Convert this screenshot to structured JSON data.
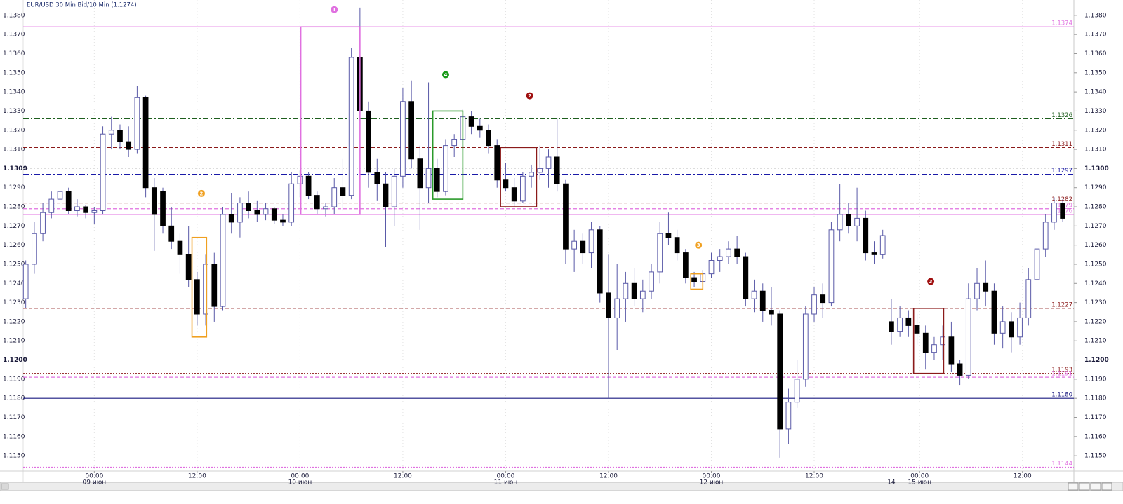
{
  "chart_data": {
    "type": "candlestick",
    "title": "EUR/USD 30 Min Bid/10 Min (1.1274)",
    "ylim": [
      1.1142,
      1.1388
    ],
    "xlim": [
      -0.3,
      122.3
    ],
    "grid": true,
    "up_color": "#ffffff",
    "down_color": "#000000",
    "wick_color": "#5a5aa8",
    "yticks": [
      {
        "value": 1.115,
        "label": "1.1150"
      },
      {
        "value": 1.116,
        "label": "1.1160"
      },
      {
        "value": 1.117,
        "label": "1.1170"
      },
      {
        "value": 1.118,
        "label": "1.1180"
      },
      {
        "value": 1.119,
        "label": "1.1190"
      },
      {
        "value": 1.12,
        "label": "1.1200",
        "bold": true
      },
      {
        "value": 1.121,
        "label": "1.1210"
      },
      {
        "value": 1.122,
        "label": "1.1220"
      },
      {
        "value": 1.123,
        "label": "1.1230"
      },
      {
        "value": 1.124,
        "label": "1.1240"
      },
      {
        "value": 1.125,
        "label": "1.1250"
      },
      {
        "value": 1.126,
        "label": "1.1260"
      },
      {
        "value": 1.127,
        "label": "1.1270"
      },
      {
        "value": 1.128,
        "label": "1.1280"
      },
      {
        "value": 1.129,
        "label": "1.1290"
      },
      {
        "value": 1.13,
        "label": "1.1300",
        "bold": true
      },
      {
        "value": 1.131,
        "label": "1.1310"
      },
      {
        "value": 1.132,
        "label": "1.1320"
      },
      {
        "value": 1.133,
        "label": "1.1330"
      },
      {
        "value": 1.134,
        "label": "1.1340"
      },
      {
        "value": 1.135,
        "label": "1.1350"
      },
      {
        "value": 1.136,
        "label": "1.1360"
      },
      {
        "value": 1.137,
        "label": "1.1370"
      },
      {
        "value": 1.138,
        "label": "1.1380"
      }
    ],
    "xticks": [
      {
        "value": 8,
        "label": "00:00"
      },
      {
        "value": 20,
        "label": "12:00"
      },
      {
        "value": 32,
        "label": "00:00"
      },
      {
        "value": 44,
        "label": "12:00"
      },
      {
        "value": 56,
        "label": "00:00"
      },
      {
        "value": 68,
        "label": "12:00"
      },
      {
        "value": 80,
        "label": "00:00"
      },
      {
        "value": 92,
        "label": "12:00"
      },
      {
        "value": 104.3,
        "label": "00:00"
      },
      {
        "value": 116.3,
        "label": "12:00"
      }
    ],
    "xdates": [
      {
        "value": 8,
        "label": "09 июн"
      },
      {
        "value": 32,
        "label": "10 июн"
      },
      {
        "value": 56,
        "label": "11 июн"
      },
      {
        "value": 80,
        "label": "12 июн"
      },
      {
        "value": 101,
        "label": "14"
      },
      {
        "value": 104.3,
        "label": "15 июн"
      }
    ],
    "levels": [
      {
        "value": 1.1374,
        "color": "#e070e0",
        "dash": "solid"
      },
      {
        "value": 1.1326,
        "color": "#1e5e1e",
        "dash": "dashdot"
      },
      {
        "value": 1.1311,
        "color": "#8b1a1a",
        "dash": "dashed"
      },
      {
        "value": 1.1297,
        "color": "#1a1aa8",
        "dash": "dashdot"
      },
      {
        "value": 1.1282,
        "color": "#8b1a1a",
        "dash": "dashed"
      },
      {
        "value": 1.1279,
        "color": "#e070e0",
        "dash": "dashed"
      },
      {
        "value": 1.1276,
        "color": "#e070e0",
        "dash": "solid"
      },
      {
        "value": 1.1227,
        "color": "#8b1a1a",
        "dash": "dashed"
      },
      {
        "value": 1.1193,
        "color": "#8b1a1a",
        "dash": "dotted"
      },
      {
        "value": 1.1191,
        "color": "#e070e0",
        "dash": "dashed"
      },
      {
        "value": 1.118,
        "label": "1.1180",
        "color": "#1a1a80",
        "dash": "solid"
      },
      {
        "value": 1.1144,
        "color": "#e070e0",
        "dash": "dotted"
      }
    ],
    "boxes": [
      {
        "x": [
          32.1,
          39.0
        ],
        "y": [
          1.1374,
          1.1276
        ],
        "color": "#e070e0"
      },
      {
        "x": [
          19.4,
          21.1
        ],
        "y": [
          1.1264,
          1.1212
        ],
        "color": "#f0a020"
      },
      {
        "x": [
          47.5,
          51.0
        ],
        "y": [
          1.133,
          1.1284
        ],
        "color": "#2a9a2a"
      },
      {
        "x": [
          55.4,
          59.6
        ],
        "y": [
          1.1311,
          1.128
        ],
        "color": "#8b1a1a"
      },
      {
        "x": [
          77.6,
          79.0
        ],
        "y": [
          1.1245,
          1.1237
        ],
        "color": "#f0a020"
      },
      {
        "x": [
          103.6,
          107.1
        ],
        "y": [
          1.1227,
          1.1193
        ],
        "color": "#8b1a1a"
      }
    ],
    "markers": [
      {
        "x": 36,
        "y": 1.1383,
        "label": "1",
        "color": "#e070e0"
      },
      {
        "x": 20.5,
        "y": 1.1287,
        "label": "2",
        "color": "#f0a020"
      },
      {
        "x": 49,
        "y": 1.1349,
        "label": "4",
        "color": "#1a9a1a"
      },
      {
        "x": 58.8,
        "y": 1.1338,
        "label": "2",
        "color": "#a01010"
      },
      {
        "x": 78.5,
        "y": 1.126,
        "label": "3",
        "color": "#f0a020"
      },
      {
        "x": 105.6,
        "y": 1.1241,
        "label": "3",
        "color": "#a01010"
      }
    ],
    "candles": [
      [
        1.1232,
        1.1252,
        1.1227,
        1.125
      ],
      [
        1.125,
        1.1272,
        1.1245,
        1.1266
      ],
      [
        1.1266,
        1.1282,
        1.1262,
        1.1277
      ],
      [
        1.1277,
        1.1288,
        1.1274,
        1.1284
      ],
      [
        1.1284,
        1.1291,
        1.1278,
        1.1288
      ],
      [
        1.1288,
        1.129,
        1.1276,
        1.1278
      ],
      [
        1.1278,
        1.1284,
        1.1275,
        1.128
      ],
      [
        1.128,
        1.1281,
        1.1274,
        1.1277
      ],
      [
        1.1277,
        1.128,
        1.1271,
        1.1278
      ],
      [
        1.1278,
        1.1322,
        1.1276,
        1.1318
      ],
      [
        1.1318,
        1.1327,
        1.131,
        1.132
      ],
      [
        1.132,
        1.1323,
        1.131,
        1.1314
      ],
      [
        1.1314,
        1.1322,
        1.1306,
        1.131
      ],
      [
        1.131,
        1.1343,
        1.1308,
        1.1337
      ],
      [
        1.1337,
        1.1338,
        1.1285,
        1.129
      ],
      [
        1.129,
        1.1295,
        1.1257,
        1.1276
      ],
      [
        1.1288,
        1.129,
        1.1266,
        1.127
      ],
      [
        1.127,
        1.128,
        1.1258,
        1.1262
      ],
      [
        1.1262,
        1.1266,
        1.1245,
        1.1255
      ],
      [
        1.1255,
        1.127,
        1.1238,
        1.1242
      ],
      [
        1.1242,
        1.1246,
        1.1218,
        1.1224
      ],
      [
        1.1224,
        1.1255,
        1.1218,
        1.125
      ],
      [
        1.125,
        1.1256,
        1.122,
        1.1228
      ],
      [
        1.1228,
        1.128,
        1.1226,
        1.1276
      ],
      [
        1.1276,
        1.1287,
        1.1266,
        1.1272
      ],
      [
        1.1272,
        1.1285,
        1.1264,
        1.1282
      ],
      [
        1.1282,
        1.1288,
        1.1274,
        1.1278
      ],
      [
        1.1278,
        1.1283,
        1.1272,
        1.1276
      ],
      [
        1.1276,
        1.1282,
        1.1273,
        1.1279
      ],
      [
        1.1279,
        1.128,
        1.1271,
        1.1273
      ],
      [
        1.1273,
        1.1276,
        1.127,
        1.1272
      ],
      [
        1.1272,
        1.1298,
        1.127,
        1.1292
      ],
      [
        1.1292,
        1.1299,
        1.1285,
        1.1296
      ],
      [
        1.1296,
        1.1298,
        1.1284,
        1.1286
      ],
      [
        1.1286,
        1.1288,
        1.1276,
        1.1279
      ],
      [
        1.1279,
        1.1282,
        1.1275,
        1.128
      ],
      [
        1.128,
        1.1295,
        1.1276,
        1.129
      ],
      [
        1.129,
        1.1305,
        1.1278,
        1.1286
      ],
      [
        1.1286,
        1.1363,
        1.1284,
        1.1358
      ],
      [
        1.1358,
        1.1384,
        1.1325,
        1.133
      ],
      [
        1.133,
        1.1335,
        1.129,
        1.1298
      ],
      [
        1.1298,
        1.1305,
        1.1283,
        1.1292
      ],
      [
        1.1292,
        1.1298,
        1.1259,
        1.128
      ],
      [
        1.128,
        1.13,
        1.127,
        1.1296
      ],
      [
        1.1296,
        1.1342,
        1.129,
        1.1335
      ],
      [
        1.1335,
        1.1346,
        1.13,
        1.1305
      ],
      [
        1.1305,
        1.1312,
        1.1268,
        1.129
      ],
      [
        1.129,
        1.1345,
        1.1282,
        1.13
      ],
      [
        1.13,
        1.1305,
        1.1285,
        1.1288
      ],
      [
        1.1288,
        1.1315,
        1.1286,
        1.1312
      ],
      [
        1.1312,
        1.1318,
        1.1306,
        1.1315
      ],
      [
        1.1315,
        1.1331,
        1.1312,
        1.1327
      ],
      [
        1.1327,
        1.133,
        1.1318,
        1.1322
      ],
      [
        1.1322,
        1.1326,
        1.1316,
        1.132
      ],
      [
        1.132,
        1.1323,
        1.1308,
        1.1312
      ],
      [
        1.1312,
        1.1315,
        1.129,
        1.1294
      ],
      [
        1.1294,
        1.1303,
        1.1288,
        1.129
      ],
      [
        1.129,
        1.1295,
        1.128,
        1.1283
      ],
      [
        1.1283,
        1.1298,
        1.1282,
        1.1296
      ],
      [
        1.1296,
        1.1302,
        1.129,
        1.1298
      ],
      [
        1.1298,
        1.1312,
        1.1294,
        1.13
      ],
      [
        1.13,
        1.131,
        1.129,
        1.1306
      ],
      [
        1.1306,
        1.1326,
        1.1288,
        1.1292
      ],
      [
        1.1292,
        1.1294,
        1.125,
        1.1258
      ],
      [
        1.1258,
        1.1268,
        1.1246,
        1.1262
      ],
      [
        1.1262,
        1.1266,
        1.125,
        1.1256
      ],
      [
        1.1256,
        1.1272,
        1.1248,
        1.1268
      ],
      [
        1.1268,
        1.127,
        1.123,
        1.1235
      ],
      [
        1.1235,
        1.1255,
        1.118,
        1.1222
      ],
      [
        1.1222,
        1.125,
        1.1205,
        1.1232
      ],
      [
        1.1232,
        1.1246,
        1.122,
        1.124
      ],
      [
        1.124,
        1.1248,
        1.1228,
        1.1232
      ],
      [
        1.1232,
        1.1242,
        1.1225,
        1.1236
      ],
      [
        1.1236,
        1.125,
        1.1232,
        1.1246
      ],
      [
        1.1246,
        1.1272,
        1.124,
        1.1266
      ],
      [
        1.1266,
        1.1277,
        1.126,
        1.1264
      ],
      [
        1.1264,
        1.1268,
        1.1252,
        1.1256
      ],
      [
        1.1256,
        1.1258,
        1.124,
        1.1243
      ],
      [
        1.1243,
        1.1246,
        1.1238,
        1.1241
      ],
      [
        1.1241,
        1.1247,
        1.124,
        1.1245
      ],
      [
        1.1245,
        1.1256,
        1.1243,
        1.1252
      ],
      [
        1.1252,
        1.1258,
        1.1246,
        1.1254
      ],
      [
        1.1254,
        1.1262,
        1.125,
        1.1258
      ],
      [
        1.1258,
        1.1265,
        1.125,
        1.1254
      ],
      [
        1.1254,
        1.1256,
        1.1228,
        1.1232
      ],
      [
        1.1232,
        1.1242,
        1.1225,
        1.1236
      ],
      [
        1.1236,
        1.124,
        1.122,
        1.1226
      ],
      [
        1.1226,
        1.1238,
        1.1218,
        1.1224
      ],
      [
        1.1224,
        1.1226,
        1.1149,
        1.1164
      ],
      [
        1.1164,
        1.1185,
        1.1156,
        1.1178
      ],
      [
        1.1178,
        1.12,
        1.1175,
        1.119
      ],
      [
        1.119,
        1.1228,
        1.1186,
        1.1224
      ],
      [
        1.1224,
        1.1238,
        1.122,
        1.1234
      ],
      [
        1.1234,
        1.124,
        1.1222,
        1.123
      ],
      [
        1.123,
        1.1272,
        1.1228,
        1.1268
      ],
      [
        1.1268,
        1.1292,
        1.1262,
        1.1276
      ],
      [
        1.1276,
        1.1282,
        1.1266,
        1.127
      ],
      [
        1.127,
        1.129,
        1.1262,
        1.1274
      ],
      [
        1.1274,
        1.1278,
        1.1252,
        1.1256
      ],
      [
        1.1256,
        1.1262,
        1.125,
        1.1255
      ],
      [
        1.1255,
        1.1268,
        1.1253,
        1.1265
      ],
      [
        1.122,
        1.1232,
        1.1208,
        1.1215
      ],
      [
        1.1215,
        1.1228,
        1.1212,
        1.1222
      ],
      [
        1.1222,
        1.1226,
        1.1212,
        1.1218
      ],
      [
        1.1218,
        1.1224,
        1.1208,
        1.1214
      ],
      [
        1.1214,
        1.1218,
        1.1195,
        1.1204
      ],
      [
        1.1204,
        1.1212,
        1.12,
        1.1208
      ],
      [
        1.1208,
        1.1218,
        1.12,
        1.1212
      ],
      [
        1.1212,
        1.122,
        1.1194,
        1.1198
      ],
      [
        1.1198,
        1.12,
        1.1187,
        1.1192
      ],
      [
        1.1192,
        1.124,
        1.119,
        1.1232
      ],
      [
        1.1232,
        1.1248,
        1.1226,
        1.124
      ],
      [
        1.124,
        1.1252,
        1.1228,
        1.1236
      ],
      [
        1.1236,
        1.124,
        1.1208,
        1.1214
      ],
      [
        1.1214,
        1.1228,
        1.1206,
        1.122
      ],
      [
        1.122,
        1.1225,
        1.1204,
        1.1212
      ],
      [
        1.1212,
        1.123,
        1.1208,
        1.1222
      ],
      [
        1.1222,
        1.1248,
        1.1218,
        1.1242
      ],
      [
        1.1242,
        1.1262,
        1.124,
        1.1258
      ],
      [
        1.1258,
        1.1276,
        1.1254,
        1.1272
      ],
      [
        1.1272,
        1.1285,
        1.1268,
        1.1282
      ],
      [
        1.1282,
        1.1284,
        1.1272,
        1.1274
      ]
    ]
  }
}
